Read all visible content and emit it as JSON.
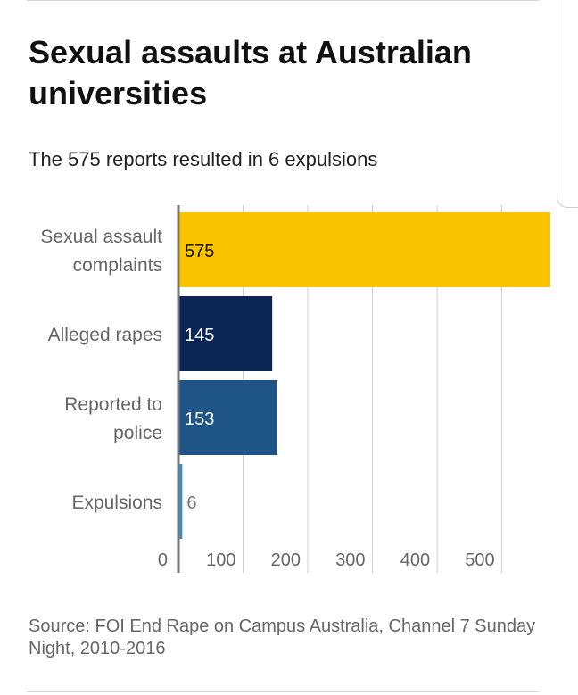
{
  "title": "Sexual assaults at Australian universities",
  "subtitle": "The 575 reports resulted in 6 expulsions",
  "source": "Source: FOI End Rape on Campus Australia, Channel 7 Sunday Night, 2010-2016",
  "colors": {
    "complaints": "#f9c300",
    "rapes": "#0b2554",
    "police": "#1f5486",
    "expulsions": "#3a8fd0",
    "grid": "#cfcfcf",
    "baseline": "#777777",
    "label": "#666666"
  },
  "chart_data": {
    "type": "bar",
    "orientation": "horizontal",
    "categories": [
      [
        "Sexual assault",
        "complaints"
      ],
      [
        "Alleged rapes"
      ],
      [
        "Reported to",
        "police"
      ],
      [
        "Expulsions"
      ]
    ],
    "values": [
      575,
      145,
      153,
      6
    ],
    "value_labels": [
      "575",
      "145",
      "153",
      "6"
    ],
    "xlim": [
      0,
      575
    ],
    "xticks": [
      0,
      100,
      200,
      300,
      400,
      500
    ],
    "tick_labels": [
      "0",
      "100",
      "200",
      "300",
      "400",
      "500"
    ],
    "grid": true
  }
}
